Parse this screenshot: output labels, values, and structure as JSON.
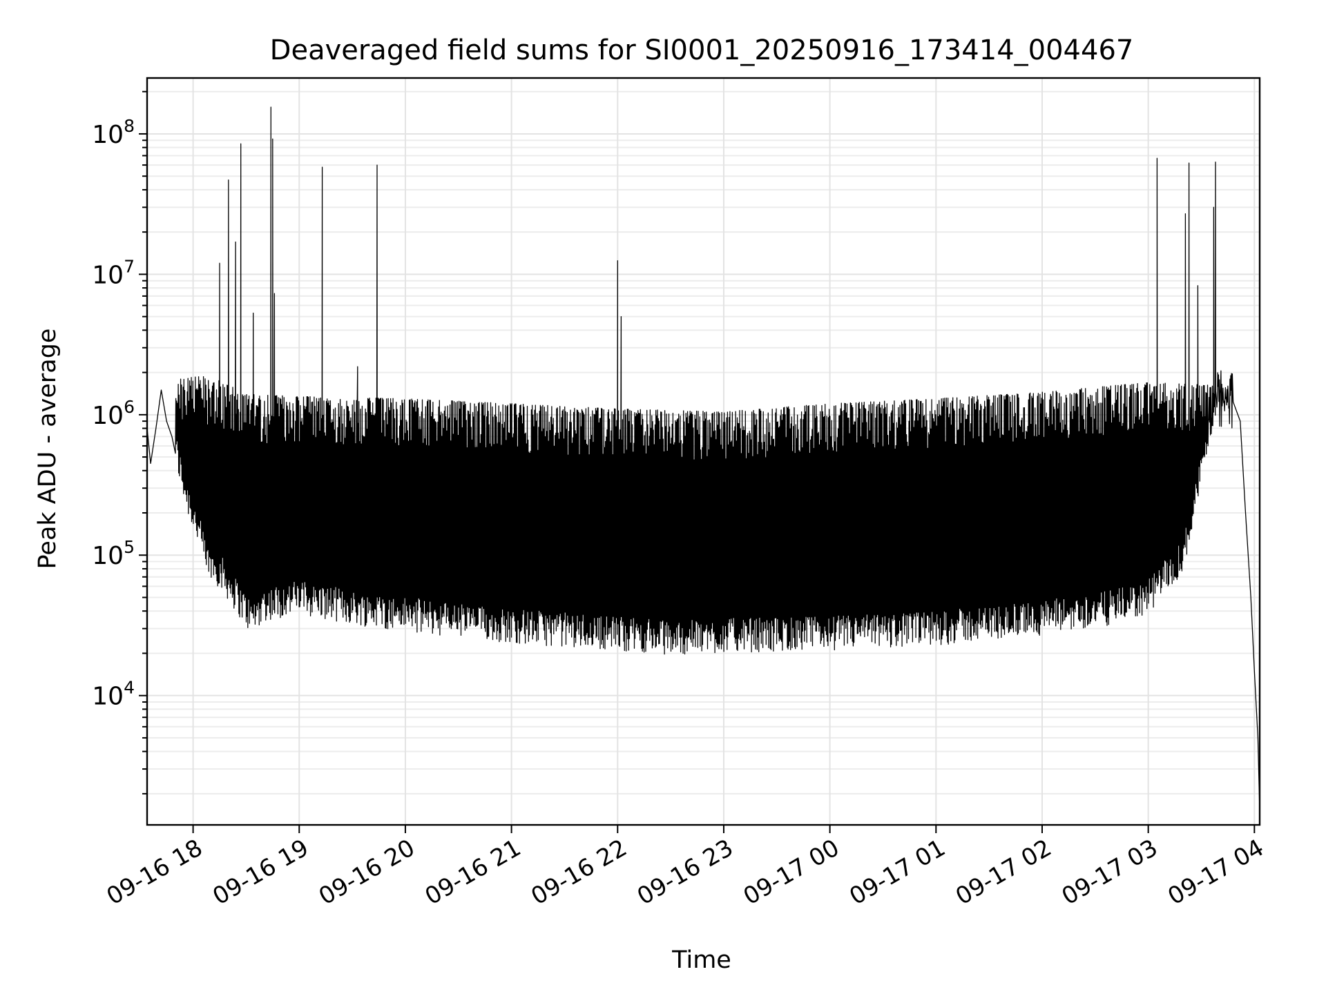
{
  "chart_data": {
    "type": "line",
    "title": "Deaveraged field sums for SI0001_20250916_173414_004467",
    "xlabel": "Time",
    "ylabel": "Peak ADU - average",
    "yscale": "log",
    "xlim": [
      "2025-09-16T17:34:00",
      "2025-09-17T04:03:00"
    ],
    "ylim": [
      1200,
      250000000
    ],
    "grid": true,
    "legend": "none",
    "line_color": "#000000",
    "x_ticks": [
      {
        "value": "2025-09-16T18:00:00",
        "label": "09-16 18"
      },
      {
        "value": "2025-09-16T19:00:00",
        "label": "09-16 19"
      },
      {
        "value": "2025-09-16T20:00:00",
        "label": "09-16 20"
      },
      {
        "value": "2025-09-16T21:00:00",
        "label": "09-16 21"
      },
      {
        "value": "2025-09-16T22:00:00",
        "label": "09-16 22"
      },
      {
        "value": "2025-09-16T23:00:00",
        "label": "09-16 23"
      },
      {
        "value": "2025-09-17T00:00:00",
        "label": "09-17 00"
      },
      {
        "value": "2025-09-17T01:00:00",
        "label": "09-17 01"
      },
      {
        "value": "2025-09-17T02:00:00",
        "label": "09-17 02"
      },
      {
        "value": "2025-09-17T03:00:00",
        "label": "09-17 03"
      },
      {
        "value": "2025-09-17T04:00:00",
        "label": "09-17 04"
      }
    ],
    "y_ticks": [
      {
        "value": 10000,
        "base": "10",
        "exp": "4"
      },
      {
        "value": 100000,
        "base": "10",
        "exp": "5"
      },
      {
        "value": 1000000,
        "base": "10",
        "exp": "6"
      },
      {
        "value": 10000000,
        "base": "10",
        "exp": "7"
      },
      {
        "value": 100000000,
        "base": "10",
        "exp": "8"
      }
    ],
    "series": [
      {
        "points": [
          [
            "2025-09-16T17:34:00",
            800000
          ],
          [
            "2025-09-16T17:36:00",
            450000
          ],
          [
            "2025-09-16T17:39:00",
            800000
          ],
          [
            "2025-09-16T17:42:00",
            1500000
          ],
          [
            "2025-09-16T17:45:00",
            900000
          ],
          [
            "2025-09-16T17:48:00",
            700000
          ],
          [
            "2025-09-16T17:52:00",
            400000
          ],
          [
            "2025-09-16T17:56:00",
            250000
          ],
          [
            "2025-09-16T18:02:00",
            150000
          ],
          [
            "2025-09-16T18:08:00",
            80000
          ],
          [
            "2025-09-16T18:15:00",
            70000
          ],
          [
            "2025-09-16T18:25:00",
            45000
          ],
          [
            "2025-09-16T18:33:00",
            32000
          ],
          [
            "2025-09-16T18:40:00",
            40000
          ],
          [
            "2025-09-16T19:00:00",
            45000
          ],
          [
            "2025-09-16T19:30:00",
            38000
          ],
          [
            "2025-09-16T20:00:00",
            34000
          ],
          [
            "2025-09-16T21:00:00",
            28000
          ],
          [
            "2025-09-16T22:00:00",
            25000
          ],
          [
            "2025-09-16T22:30:00",
            23000
          ],
          [
            "2025-09-16T23:00:00",
            24000
          ],
          [
            "2025-09-17T00:00:00",
            25000
          ],
          [
            "2025-09-17T01:00:00",
            27000
          ],
          [
            "2025-09-17T02:00:00",
            32000
          ],
          [
            "2025-09-17T02:40:00",
            38000
          ],
          [
            "2025-09-17T03:00:00",
            45000
          ],
          [
            "2025-09-17T03:20:00",
            90000
          ],
          [
            "2025-09-17T03:40:00",
            1500000
          ],
          [
            "2025-09-17T03:48:00",
            1300000
          ],
          [
            "2025-09-17T03:52:00",
            900000
          ],
          [
            "2025-09-17T03:55:00",
            200000
          ],
          [
            "2025-09-17T03:58:00",
            50000
          ],
          [
            "2025-09-17T04:00:00",
            15000
          ],
          [
            "2025-09-17T04:02:00",
            5000
          ],
          [
            "2025-09-17T04:03:00",
            1500
          ]
        ],
        "upper_envelope": [
          [
            "2025-09-16T17:50:00",
            1800000
          ],
          [
            "2025-09-16T18:10:00",
            1900000
          ],
          [
            "2025-09-16T18:30:00",
            1400000
          ],
          [
            "2025-09-16T19:00:00",
            1350000
          ],
          [
            "2025-09-16T20:00:00",
            1300000
          ],
          [
            "2025-09-16T21:00:00",
            1200000
          ],
          [
            "2025-09-16T22:00:00",
            1100000
          ],
          [
            "2025-09-16T23:00:00",
            1050000
          ],
          [
            "2025-09-17T00:00:00",
            1200000
          ],
          [
            "2025-09-17T01:00:00",
            1300000
          ],
          [
            "2025-09-17T02:00:00",
            1450000
          ],
          [
            "2025-09-17T03:00:00",
            1700000
          ],
          [
            "2025-09-17T03:45:00",
            1600000
          ]
        ],
        "spikes": [
          [
            "2025-09-16T18:15:00",
            12000000
          ],
          [
            "2025-09-16T18:20:00",
            47000000
          ],
          [
            "2025-09-16T18:24:00",
            17000000
          ],
          [
            "2025-09-16T18:27:00",
            85000000
          ],
          [
            "2025-09-16T18:34:00",
            5300000
          ],
          [
            "2025-09-16T18:44:00",
            155000000
          ],
          [
            "2025-09-16T18:45:00",
            92000000
          ],
          [
            "2025-09-16T18:46:00",
            7300000
          ],
          [
            "2025-09-16T19:13:00",
            58000000
          ],
          [
            "2025-09-16T19:33:00",
            2200000
          ],
          [
            "2025-09-16T19:44:00",
            60000000
          ],
          [
            "2025-09-16T22:00:00",
            12500000
          ],
          [
            "2025-09-16T22:02:00",
            5000000
          ],
          [
            "2025-09-17T03:05:00",
            67000000
          ],
          [
            "2025-09-17T03:21:00",
            27000000
          ],
          [
            "2025-09-17T03:23:00",
            62000000
          ],
          [
            "2025-09-17T03:28:00",
            8300000
          ],
          [
            "2025-09-17T03:37:00",
            30000000
          ],
          [
            "2025-09-17T03:38:00",
            63000000
          ]
        ]
      }
    ]
  }
}
